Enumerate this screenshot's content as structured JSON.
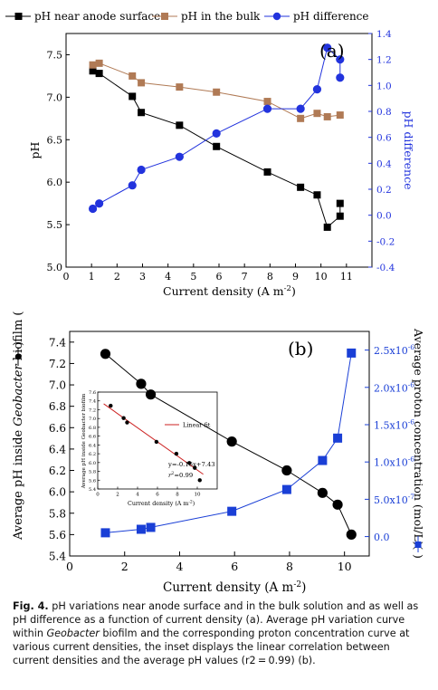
{
  "chart_data": [
    {
      "type": "line",
      "panel_label": "(a)",
      "legend": [
        "pH near anode surface",
        "pH in the bulk",
        "pH difference"
      ],
      "xlabel": "Current density (A m",
      "xlabel_sup": "-2",
      "xlabel_end": ")",
      "ylabel": "pH",
      "y2label": "pH difference",
      "xlim": [
        0,
        12
      ],
      "ylim": [
        5.0,
        7.75
      ],
      "y2lim": [
        -0.4,
        1.4
      ],
      "xticks": [
        "0",
        "1",
        "2",
        "3",
        "4",
        "5",
        "6",
        "7",
        "8",
        "9",
        "10",
        "11"
      ],
      "yticks": [
        "5.0",
        "5.5",
        "6.0",
        "6.5",
        "7.0",
        "7.5"
      ],
      "y2ticks": [
        "-0.4",
        "-0.2",
        "0.0",
        "0.2",
        "0.4",
        "0.6",
        "0.8",
        "1.0",
        "1.2",
        "1.4"
      ],
      "series": [
        {
          "name": "pH near anode surface",
          "axis": "left",
          "color": "#000000",
          "marker": "square",
          "x": [
            1.05,
            1.3,
            2.6,
            2.95,
            4.45,
            5.9,
            7.9,
            9.2,
            9.85,
            10.25,
            10.75,
            10.75
          ],
          "y": [
            7.31,
            7.28,
            7.01,
            6.82,
            6.67,
            6.42,
            6.12,
            5.94,
            5.85,
            5.47,
            5.6,
            5.75
          ]
        },
        {
          "name": "pH in the bulk",
          "axis": "left",
          "color": "#b07a55",
          "marker": "square",
          "x": [
            1.05,
            1.3,
            2.6,
            2.95,
            4.45,
            5.9,
            7.9,
            9.2,
            9.85,
            10.25,
            10.75
          ],
          "y": [
            7.38,
            7.4,
            7.25,
            7.17,
            7.12,
            7.06,
            6.95,
            6.75,
            6.81,
            6.77,
            6.79
          ]
        },
        {
          "name": "pH difference",
          "axis": "right",
          "color": "#2233dd",
          "marker": "circle",
          "x": [
            1.05,
            1.3,
            2.6,
            2.95,
            4.45,
            5.9,
            7.9,
            9.2,
            9.85,
            10.25,
            10.75,
            10.75
          ],
          "y": [
            0.05,
            0.09,
            0.23,
            0.35,
            0.45,
            0.63,
            0.82,
            0.82,
            0.97,
            1.29,
            1.2,
            1.06
          ]
        }
      ]
    },
    {
      "type": "line",
      "panel_label": "(b)",
      "xlabel": "Current density (A m",
      "xlabel_sup": "-2",
      "xlabel_end": ")",
      "ylabel_parts": [
        "Average pH inside ",
        "Geobacter",
        " biofilm (",
        ")"
      ],
      "y2label": "Average proton concentration (mol/L)(",
      "y2label_end": ")",
      "xlim": [
        0,
        10.9
      ],
      "ylim": [
        5.4,
        7.5
      ],
      "y2lim": [
        -2.6e-07,
        2.75e-06
      ],
      "xticks": [
        "0",
        "2",
        "4",
        "6",
        "8",
        "10"
      ],
      "yticks": [
        "5.4",
        "5.6",
        "5.8",
        "6.0",
        "6.2",
        "6.4",
        "6.6",
        "6.8",
        "7.0",
        "7.2",
        "7.4"
      ],
      "y2ticks": [
        "0.0",
        "5.0x10",
        "1.0x10",
        "1.5x10",
        "2.0x10",
        "2.5x10"
      ],
      "y2tick_exps": [
        "",
        "-7",
        "-6",
        "-6",
        "-6",
        "-6"
      ],
      "series": [
        {
          "name": "Average pH",
          "axis": "left",
          "color": "#000000",
          "marker": "circle",
          "x": [
            1.3,
            2.6,
            2.95,
            5.9,
            7.9,
            9.2,
            9.75,
            10.25
          ],
          "y": [
            7.29,
            7.01,
            6.91,
            6.47,
            6.2,
            5.99,
            5.88,
            5.6
          ]
        },
        {
          "name": "Average proton concentration",
          "axis": "right",
          "color": "#1a3fd6",
          "marker": "square",
          "x": [
            1.3,
            2.6,
            2.95,
            5.9,
            7.9,
            9.2,
            9.75,
            10.25
          ],
          "y": [
            5.1e-08,
            9.8e-08,
            1.23e-07,
            3.39e-07,
            6.31e-07,
            1.02e-06,
            1.32e-06,
            2.46e-06
          ]
        }
      ],
      "inset": {
        "type": "scatter",
        "ylabel": "Average pH inside Geobacter biofilm",
        "xlabel": "Current density (A m",
        "xlabel_sup": "-2",
        "xlabel_end": ")",
        "xlim": [
          0,
          12
        ],
        "ylim": [
          5.4,
          7.6
        ],
        "xticks": [
          "0",
          "2",
          "4",
          "6",
          "8",
          "10"
        ],
        "yticks": [
          "5.4",
          "5.6",
          "5.8",
          "6.0",
          "6.2",
          "6.4",
          "6.6",
          "6.8",
          "7.0",
          "7.2",
          "7.4",
          "7.6"
        ],
        "legend": "Linear fit",
        "equation": "y=-0.16x+7.43",
        "r2_label": "r",
        "r2_sup": "2",
        "r2_value": "=0.99",
        "fit": {
          "slope": -0.16,
          "intercept": 7.43,
          "x_range": [
            0.6,
            10.6
          ]
        },
        "points": {
          "x": [
            1.3,
            2.6,
            2.95,
            5.9,
            7.9,
            9.2,
            9.75,
            10.25
          ],
          "y": [
            7.29,
            7.01,
            6.91,
            6.47,
            6.2,
            5.99,
            5.88,
            5.6
          ]
        }
      }
    }
  ],
  "caption": {
    "label": "Fig. 4.",
    "text1": "pH variations near anode surface and in the bulk solution and as well as pH difference as a function of current density (a). Average pH variation curve within ",
    "italic": "Geobacter",
    "text2": " biofilm and the corresponding proton concentration curve at various current densities, the inset displays the linear correlation between current densities and the average pH values (r2 = 0.99) (b)."
  }
}
